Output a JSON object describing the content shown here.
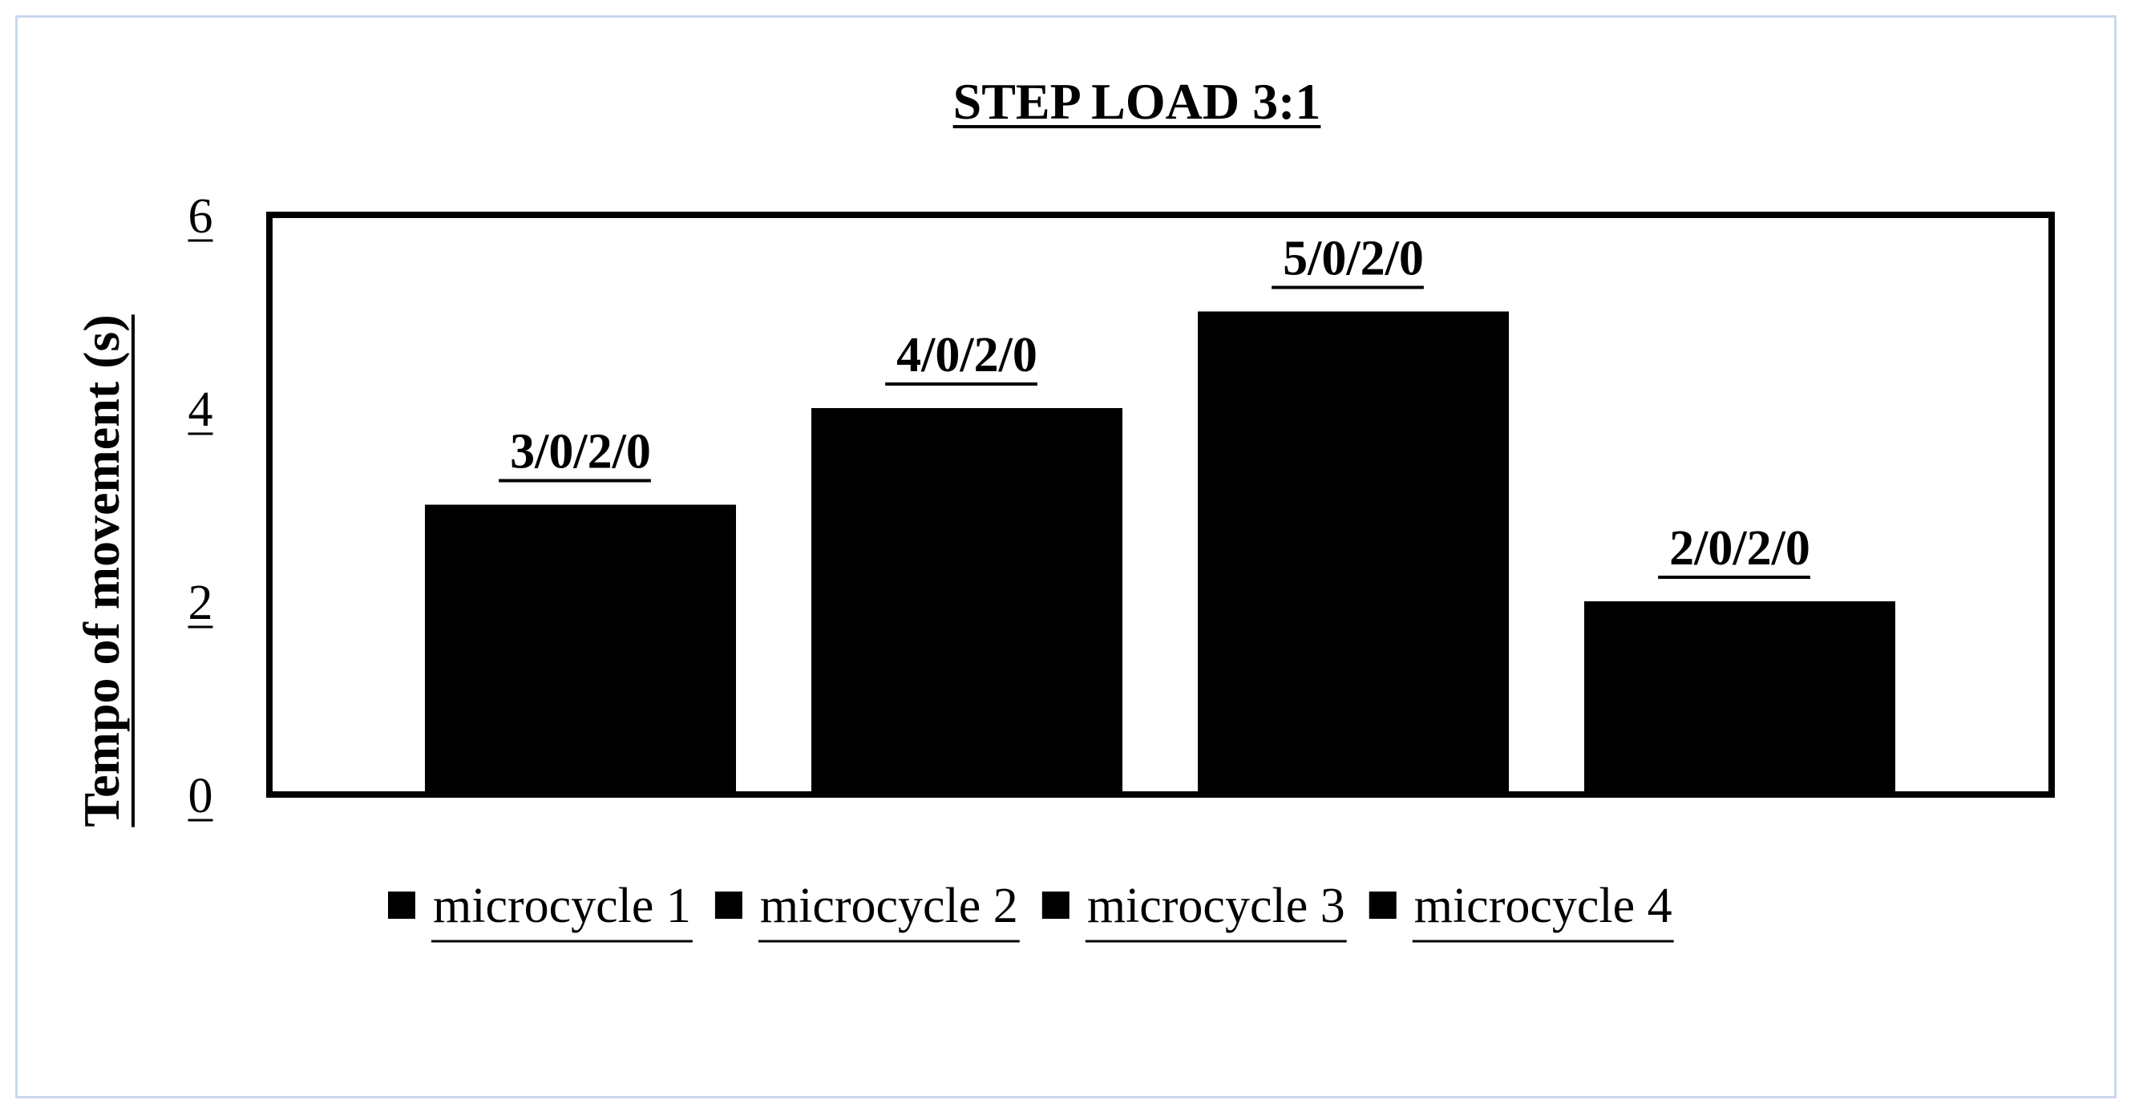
{
  "chart_data": {
    "type": "bar",
    "title": "STEP LOAD 3:1",
    "ylabel": "Tempo of movement  (s)",
    "xlabel": "",
    "ylim": [
      0,
      6
    ],
    "yticks": [
      "0",
      "2",
      "4",
      "6"
    ],
    "grid": false,
    "legend_position": "bottom",
    "series": [
      {
        "name": "microcycle 1",
        "values": [
          3
        ],
        "label": "3/0/2/0",
        "color": "#000000"
      },
      {
        "name": "microcycle 2",
        "values": [
          4
        ],
        "label": "4/0/2/0",
        "color": "#000000"
      },
      {
        "name": "microcycle 3",
        "values": [
          5
        ],
        "label": "5/0/2/0",
        "color": "#000000"
      },
      {
        "name": "microcycle 4",
        "values": [
          2
        ],
        "label": "2/0/2/0",
        "color": "#000000"
      }
    ]
  }
}
